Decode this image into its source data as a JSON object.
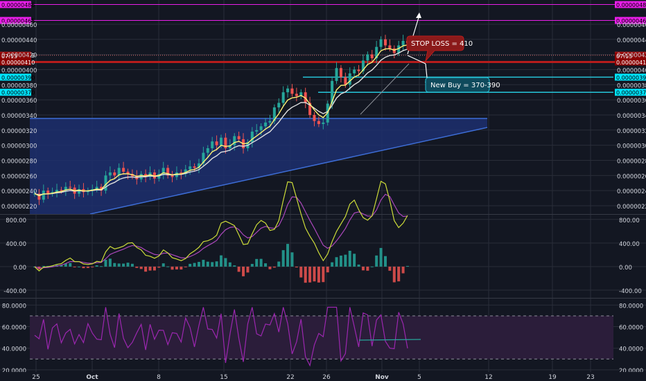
{
  "colors": {
    "background": "#131722",
    "grid": "#2a2e39",
    "axis_text": "#d1d4dc",
    "magenta": "#e91ee9",
    "red_line": "#b71c1c",
    "cyan": "#26c6da",
    "triangle_fill": "#1d2f6f",
    "triangle_edge": "#3d6dd6",
    "candle_up": "#26a69a",
    "candle_down": "#ef5350",
    "ema_fast": "#fff176",
    "ema_slow": "#e0e0e0",
    "macd_line": "#cddc39",
    "signal_line": "#ab47bc",
    "rsi_line": "#9c27b0",
    "rsi_band": "#2b1d3a",
    "annotation_red": "#8b1a1a",
    "annotation_blue": "#0f4a5c",
    "price_tag_dark": "#8b0000",
    "price_tag_magenta": "#e91ee9",
    "price_tag_red": "#c62828",
    "price_tag_cyan": "#00e5ff"
  },
  "chart_data": [
    {
      "type": "candlestick",
      "panel": "price",
      "x_tick_labels": [
        "25",
        "Oct",
        "8",
        "15",
        "22",
        "26",
        "Nov",
        "5",
        "12",
        "19",
        "23"
      ],
      "y_tick_labels": [
        "0.00000220",
        "0.00000240",
        "0.00000260",
        "0.00000280",
        "0.00000300",
        "0.00000320",
        "0.00000340",
        "0.00000360",
        "0.00000380",
        "0.00000400",
        "0.00000420",
        "0.00000440",
        "0.00000460"
      ],
      "y_ticks": [
        2.2e-06,
        2.4e-06,
        2.6e-06,
        2.8e-06,
        3e-06,
        3.2e-06,
        3.4e-06,
        3.6e-06,
        3.8e-06,
        4e-06,
        4.2e-06,
        4.4e-06,
        4.6e-06
      ],
      "ylim": [
        2.09e-06,
        4.92e-06
      ],
      "close_series": [
        236,
        228,
        240,
        236,
        238,
        241,
        240,
        245,
        244,
        236,
        242,
        238,
        240,
        242,
        245,
        240,
        260,
        264,
        260,
        270,
        265,
        262,
        259,
        255,
        262,
        258,
        264,
        256,
        262,
        270,
        260,
        258,
        264,
        262,
        268,
        272,
        270,
        276,
        290,
        296,
        305,
        300,
        310,
        296,
        300,
        312,
        308,
        296,
        304,
        318,
        320,
        325,
        330,
        332,
        350,
        356,
        370,
        375,
        368,
        365,
        370,
        356,
        340,
        332,
        328,
        330,
        355,
        385,
        402,
        390,
        380,
        395,
        400,
        398,
        412,
        420,
        415,
        430,
        440,
        432,
        428,
        422,
        432,
        438,
        435
      ],
      "horizontal_levels": [
        {
          "label": "0.00000486",
          "value": 4.86e-06,
          "color": "magenta"
        },
        {
          "label": "0.00000465",
          "value": 4.65e-06,
          "color": "magenta"
        },
        {
          "label": "0.00000419",
          "value": 4.19e-06,
          "color": "red_dotted"
        },
        {
          "label": "0.00000410",
          "value": 4.1e-06,
          "color": "red"
        },
        {
          "label": "0.00000390",
          "value": 3.9e-06,
          "color": "cyan"
        },
        {
          "label": "0.00000370",
          "value": 3.7e-06,
          "color": "cyan"
        }
      ],
      "current_price_time": "07:13",
      "annotations": [
        {
          "text": "STOP LOSS = 410"
        },
        {
          "text": "New Buy = 370-390"
        }
      ]
    },
    {
      "type": "line",
      "panel": "macd",
      "y_tick_labels": [
        "-400.00",
        "0.00",
        "400.00",
        "800.00"
      ],
      "y_ticks": [
        -400,
        0,
        400,
        800
      ],
      "ylim": [
        -530,
        880
      ]
    },
    {
      "type": "line",
      "panel": "rsi",
      "y_tick_labels": [
        "20.0000",
        "40.0000",
        "60.0000",
        "80.0000"
      ],
      "y_ticks": [
        20,
        40,
        60,
        80
      ],
      "ylim": [
        18,
        86
      ],
      "band": [
        30,
        70
      ]
    }
  ]
}
